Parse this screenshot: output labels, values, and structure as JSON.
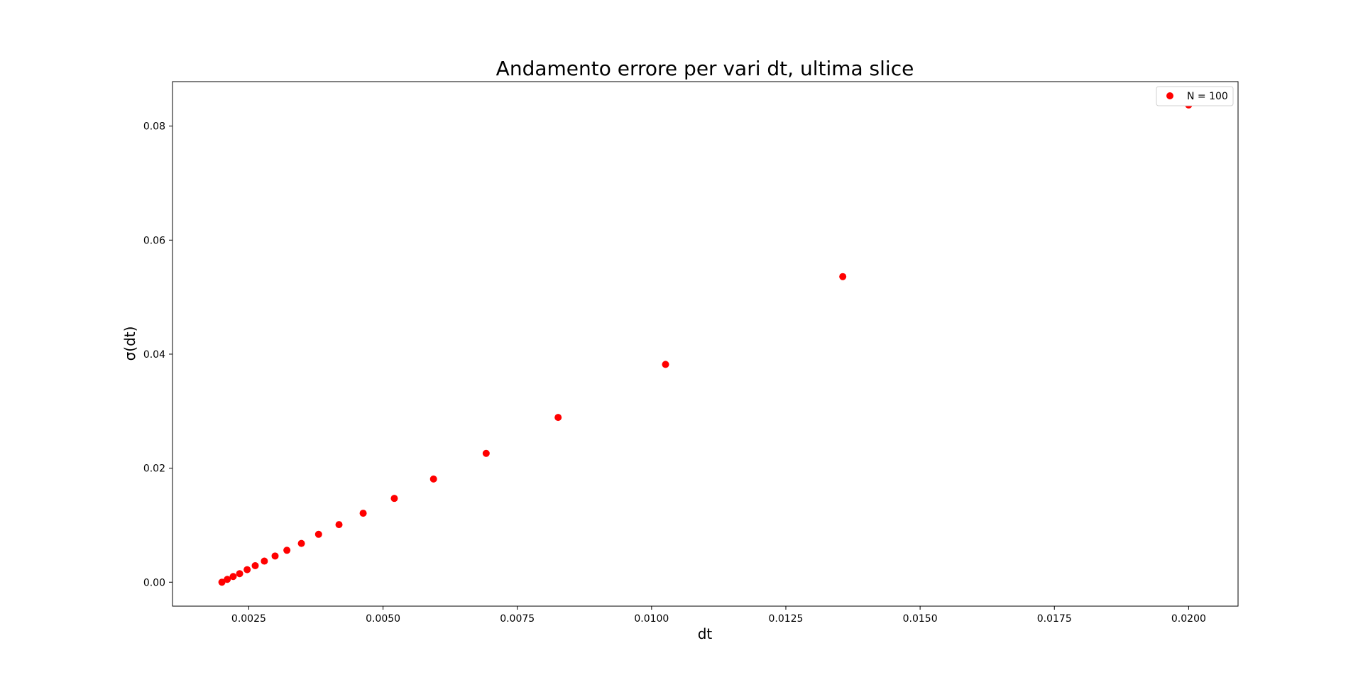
{
  "chart_data": {
    "type": "scatter",
    "title": "Andamento errore per vari dt, ultima slice",
    "xlabel": "dt",
    "ylabel": "σ(dt)",
    "xlim": [
      0.00108,
      0.02092
    ],
    "ylim": [
      -0.0042,
      0.0878
    ],
    "xticks": [
      0.0025,
      0.005,
      0.0075,
      0.01,
      0.0125,
      0.015,
      0.0175,
      0.02
    ],
    "xtick_labels": [
      "0.0025",
      "0.0050",
      "0.0075",
      "0.0100",
      "0.0125",
      "0.0150",
      "0.0175",
      "0.0200"
    ],
    "yticks": [
      0.0,
      0.02,
      0.04,
      0.06,
      0.08
    ],
    "ytick_labels": [
      "0.00",
      "0.02",
      "0.04",
      "0.06",
      "0.08"
    ],
    "grid": false,
    "legend_position": "top-right",
    "series": [
      {
        "name": "N = 100",
        "color": "#ff0000",
        "marker": "circle",
        "x": [
          0.002,
          0.0021,
          0.00221,
          0.00233,
          0.00247,
          0.00262,
          0.00279,
          0.00299,
          0.00321,
          0.00348,
          0.0038,
          0.00418,
          0.00463,
          0.00521,
          0.00594,
          0.00692,
          0.00826,
          0.01026,
          0.01356,
          0.02
        ],
        "y": [
          0.0,
          0.0005,
          0.001,
          0.0015,
          0.0022,
          0.0029,
          0.0037,
          0.0046,
          0.0056,
          0.0068,
          0.0084,
          0.0101,
          0.0121,
          0.0147,
          0.0181,
          0.0226,
          0.0289,
          0.0382,
          0.0536,
          0.0837
        ]
      }
    ]
  }
}
